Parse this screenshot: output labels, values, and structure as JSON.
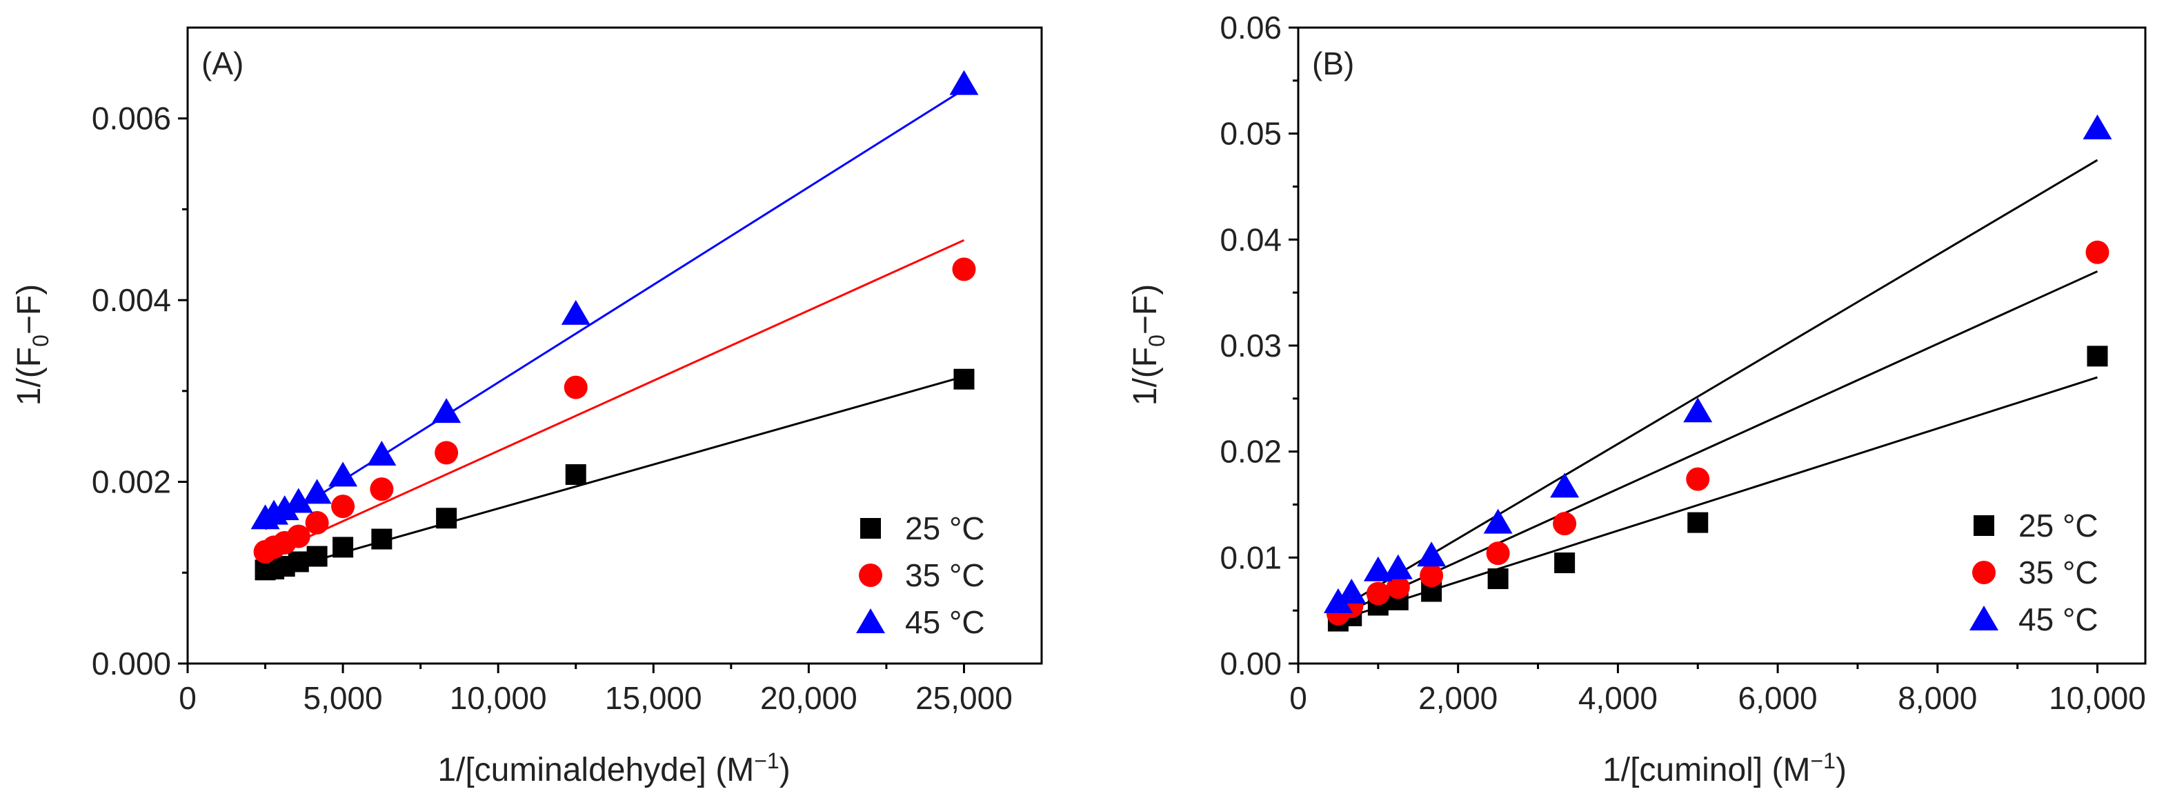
{
  "chart_data": [
    {
      "type": "scatter",
      "panel_label": "(A)",
      "xlabel": "1/[cuminaldehyde] (M",
      "xlabel_sup": "−1",
      "xlabel_end": ")",
      "ylabel": "1/(F",
      "ylabel_sub": "0",
      "ylabel_end": "−F)",
      "xlim": [
        0,
        27500
      ],
      "ylim": [
        0,
        0.007
      ],
      "xticks": [
        0,
        5000,
        10000,
        15000,
        20000,
        25000
      ],
      "xtick_labels": [
        "0",
        "5,000",
        "10,000",
        "15,000",
        "20,000",
        "25,000"
      ],
      "yticks": [
        0,
        0.002,
        0.004,
        0.006
      ],
      "ytick_labels": [
        "0.000",
        "0.002",
        "0.004",
        "0.006"
      ],
      "legend_position": "bottom-right",
      "series": [
        {
          "name": "25 °C",
          "marker": "square",
          "color": "#000000",
          "line_color": "#000000",
          "x": [
            2500,
            2778,
            3125,
            3571,
            4167,
            5000,
            6250,
            8333,
            12500,
            25000
          ],
          "y": [
            0.00103,
            0.00104,
            0.00107,
            0.00112,
            0.00118,
            0.00128,
            0.00137,
            0.0016,
            0.00208,
            0.00313
          ],
          "fit": {
            "x": [
              2500,
              25000
            ],
            "y": [
              0.00098,
              0.00316
            ]
          }
        },
        {
          "name": "35 °C",
          "marker": "circle",
          "color": "#ff0000",
          "line_color": "#ff0000",
          "x": [
            2500,
            2778,
            3125,
            3571,
            4167,
            5000,
            6250,
            8333,
            12500,
            25000
          ],
          "y": [
            0.00123,
            0.00128,
            0.00133,
            0.0014,
            0.00155,
            0.00173,
            0.00192,
            0.00232,
            0.00304,
            0.00434
          ],
          "fit": {
            "x": [
              2500,
              25000
            ],
            "y": [
              0.00118,
              0.00466
            ]
          }
        },
        {
          "name": "45 °C",
          "marker": "triangle",
          "color": "#0000ff",
          "line_color": "#0000ff",
          "x": [
            2500,
            2778,
            3125,
            3571,
            4167,
            5000,
            6250,
            8333,
            12500,
            25000
          ],
          "y": [
            0.0016,
            0.00165,
            0.0017,
            0.00178,
            0.00188,
            0.00207,
            0.0023,
            0.00277,
            0.00385,
            0.00638
          ],
          "fit": {
            "x": [
              2500,
              25000
            ],
            "y": [
              0.00148,
              0.00632
            ]
          }
        }
      ]
    },
    {
      "type": "scatter",
      "panel_label": "(B)",
      "xlabel": "1/[cuminol] (M",
      "xlabel_sup": "−1",
      "xlabel_end": ")",
      "ylabel": "1/(F",
      "ylabel_sub": "0",
      "ylabel_end": "−F)",
      "xlim": [
        0,
        10600
      ],
      "ylim": [
        0,
        0.06
      ],
      "xticks": [
        0,
        2000,
        4000,
        6000,
        8000,
        10000
      ],
      "xtick_labels": [
        "0",
        "2,000",
        "4,000",
        "6,000",
        "8,000",
        "10,000"
      ],
      "yticks": [
        0,
        0.01,
        0.02,
        0.03,
        0.04,
        0.05,
        0.06
      ],
      "ytick_labels": [
        "0.00",
        "0.01",
        "0.02",
        "0.03",
        "0.04",
        "0.05",
        "0.06"
      ],
      "legend_position": "bottom-right",
      "series": [
        {
          "name": "25 °C",
          "marker": "square",
          "color": "#000000",
          "line_color": "#000000",
          "x": [
            500,
            667,
            1000,
            1250,
            1667,
            2500,
            3333,
            5000,
            10000
          ],
          "y": [
            0.004,
            0.0045,
            0.0055,
            0.006,
            0.0068,
            0.008,
            0.0095,
            0.0133,
            0.029
          ],
          "fit": {
            "x": [
              500,
              10000
            ],
            "y": [
              0.0041,
              0.027
            ]
          }
        },
        {
          "name": "35 °C",
          "marker": "circle",
          "color": "#ff0000",
          "line_color": "#000000",
          "x": [
            500,
            667,
            1000,
            1250,
            1667,
            2500,
            3333,
            5000,
            10000
          ],
          "y": [
            0.0047,
            0.0054,
            0.0066,
            0.0072,
            0.0083,
            0.0104,
            0.0132,
            0.0174,
            0.0388
          ],
          "fit": {
            "x": [
              500,
              10000
            ],
            "y": [
              0.0045,
              0.037
            ]
          }
        },
        {
          "name": "45 °C",
          "marker": "triangle",
          "color": "#0000ff",
          "line_color": "#000000",
          "x": [
            500,
            667,
            1000,
            1250,
            1667,
            2500,
            3333,
            5000,
            10000
          ],
          "y": [
            0.0058,
            0.0067,
            0.0088,
            0.009,
            0.0102,
            0.0133,
            0.0167,
            0.0238,
            0.0505
          ],
          "fit": {
            "x": [
              500,
              10000
            ],
            "y": [
              0.0051,
              0.0475
            ]
          }
        }
      ]
    }
  ]
}
